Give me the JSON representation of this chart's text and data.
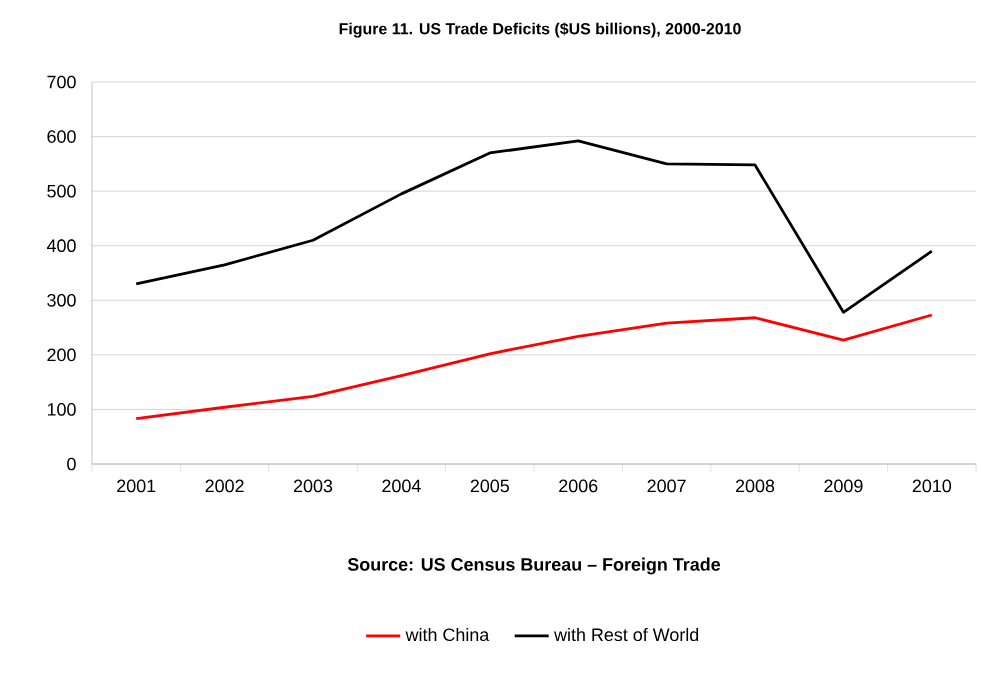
{
  "chart_data": {
    "type": "line",
    "title": "Figure 11. US Trade Deficits ($US billions), 2000-2010",
    "categories": [
      "2001",
      "2002",
      "2003",
      "2004",
      "2005",
      "2006",
      "2007",
      "2008",
      "2009",
      "2010"
    ],
    "series": [
      {
        "name": "with China",
        "color": "#ff0000",
        "values": [
          83,
          104,
          124,
          162,
          202,
          234,
          258,
          268,
          227,
          273
        ]
      },
      {
        "name": "with Rest of World",
        "color": "#000000",
        "values": [
          330,
          365,
          410,
          495,
          570,
          592,
          550,
          548,
          278,
          390
        ]
      }
    ],
    "ylim": [
      0,
      700
    ],
    "yticks": [
      0,
      100,
      200,
      300,
      400,
      500,
      600,
      700
    ],
    "grid": "y",
    "legend": "bottom",
    "annotations": [
      "Source: US Census Bureau – Foreign Trade"
    ]
  }
}
